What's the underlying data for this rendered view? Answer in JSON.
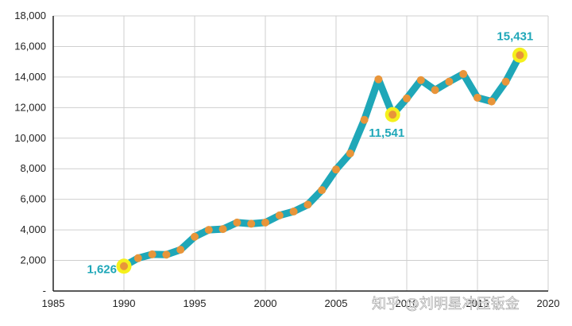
{
  "chart_data": {
    "type": "line",
    "title": "",
    "xlabel": "",
    "ylabel": "",
    "xlim": [
      1985,
      2020
    ],
    "ylim": [
      0,
      18000
    ],
    "x_ticks": [
      1985,
      1990,
      1995,
      2000,
      2005,
      2010,
      2015,
      2020
    ],
    "x_tick_labels": [
      "1985",
      "1990",
      "1995",
      "2000",
      "2005",
      "2010",
      "2015",
      "2020"
    ],
    "y_ticks": [
      0,
      2000,
      4000,
      6000,
      8000,
      10000,
      12000,
      14000,
      16000,
      18000
    ],
    "y_tick_labels": [
      "-",
      "2,000",
      "4,000",
      "6,000",
      "8,000",
      "10,000",
      "12,000",
      "14,000",
      "16,000",
      "18,000"
    ],
    "grid": true,
    "colors": {
      "line": "#1fa7b8",
      "marker": "#e8953a",
      "highlight": "#f5f01c",
      "annotation": "#1fa7b8",
      "grid": "#cfcfcf"
    },
    "series": [
      {
        "x": [
          1990,
          1991,
          1992,
          1993,
          1994,
          1995,
          1996,
          1997,
          1998,
          1999,
          2000,
          2001,
          2002,
          2003,
          2004,
          2005,
          2006,
          2007,
          2008,
          2009,
          2010,
          2011,
          2012,
          2013,
          2014,
          2015,
          2016,
          2017,
          2018
        ],
        "values": [
          1626,
          2150,
          2400,
          2380,
          2700,
          3550,
          4000,
          4050,
          4480,
          4400,
          4480,
          4950,
          5200,
          5650,
          6600,
          7950,
          9000,
          11200,
          13850,
          11541,
          12600,
          13800,
          13150,
          13700,
          14200,
          12650,
          12400,
          13700,
          15431
        ]
      }
    ],
    "annotations": [
      {
        "x": 1990,
        "y": 1626,
        "text": "1,626"
      },
      {
        "x": 2009,
        "y": 11541,
        "text": "11,541"
      },
      {
        "x": 2018,
        "y": 15431,
        "text": "15,431"
      }
    ]
  },
  "watermark": "知乎 @刘明星冲压钣金"
}
